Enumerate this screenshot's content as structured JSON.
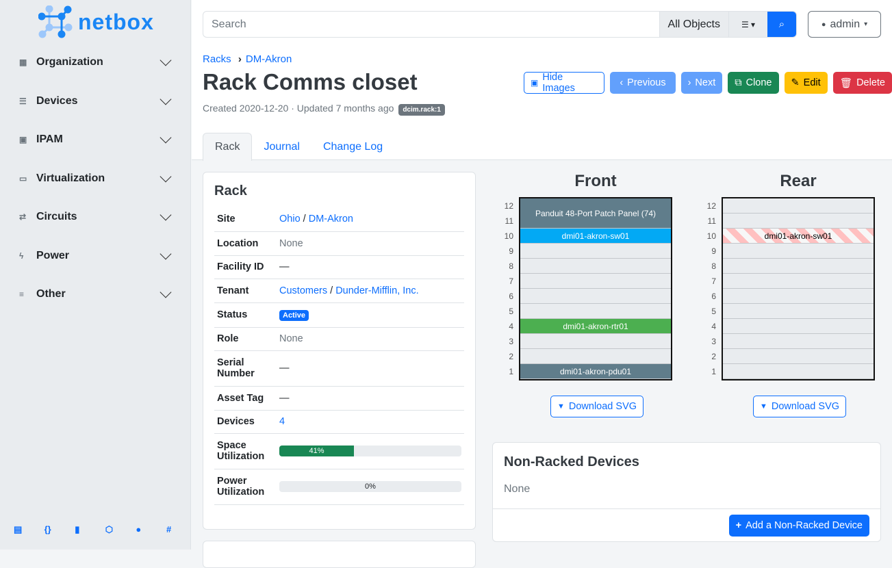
{
  "brand": {
    "name": "netbox"
  },
  "sidebar": {
    "items": [
      {
        "label": "Organization",
        "icon": "building-icon"
      },
      {
        "label": "Devices",
        "icon": "server-icon"
      },
      {
        "label": "IPAM",
        "icon": "ip-icon"
      },
      {
        "label": "Virtualization",
        "icon": "monitor-icon"
      },
      {
        "label": "Circuits",
        "icon": "circuit-icon"
      },
      {
        "label": "Power",
        "icon": "flash-icon"
      },
      {
        "label": "Other",
        "icon": "notes-icon"
      }
    ],
    "footer": [
      "docs-icon",
      "api-icon",
      "book-icon",
      "graphql-icon",
      "github-icon",
      "slack-icon"
    ]
  },
  "search": {
    "placeholder": "Search",
    "scope": "All Objects"
  },
  "user": {
    "name": "admin"
  },
  "breadcrumb": [
    "Racks",
    "DM-Akron"
  ],
  "page": {
    "title": "Rack Comms closet",
    "created": "Created 2020-12-20",
    "updated": "Updated 7 months ago",
    "tag": "dcim.rack:1"
  },
  "actions": {
    "hide_images": "Hide Images",
    "previous": "Previous",
    "next": "Next",
    "clone": "Clone",
    "edit": "Edit",
    "delete": "Delete"
  },
  "tabs": [
    "Rack",
    "Journal",
    "Change Log"
  ],
  "rack_card": {
    "title": "Rack",
    "site_a": "Ohio",
    "site_b": "DM-Akron",
    "location": "None",
    "facility_id": "—",
    "tenant_a": "Customers",
    "tenant_b": "Dunder-Mifflin, Inc.",
    "status": "Active",
    "role": "None",
    "serial": "—",
    "asset_tag": "—",
    "devices": "4",
    "space_util": 41,
    "space_util_label": "41%",
    "power_util": 0,
    "power_util_label": "0%",
    "labels": {
      "site": "Site",
      "location": "Location",
      "facility": "Facility ID",
      "tenant": "Tenant",
      "status": "Status",
      "role": "Role",
      "serial": "Serial Number",
      "asset": "Asset Tag",
      "devices": "Devices",
      "space": "Space Utilization",
      "power": "Power Utilization"
    }
  },
  "elevations": {
    "front_title": "Front",
    "rear_title": "Rear",
    "units": [
      "12",
      "11",
      "10",
      "9",
      "8",
      "7",
      "6",
      "5",
      "4",
      "3",
      "2",
      "1"
    ],
    "front": {
      "patch": "Panduit 48-Port Patch Panel (74)",
      "sw": "dmi01-akron-sw01",
      "rtr": "dmi01-akron-rtr01",
      "pdu": "dmi01-akron-pdu01"
    },
    "rear": {
      "sw": "dmi01-akron-sw01"
    },
    "download": "Download SVG",
    "colors": {
      "patch": "#607d8b",
      "switch": "#03a9f4",
      "router": "#4caf50",
      "pdu": "#607d8b"
    }
  },
  "non_racked": {
    "title": "Non-Racked Devices",
    "value": "None",
    "add": "Add a Non-Racked Device"
  }
}
